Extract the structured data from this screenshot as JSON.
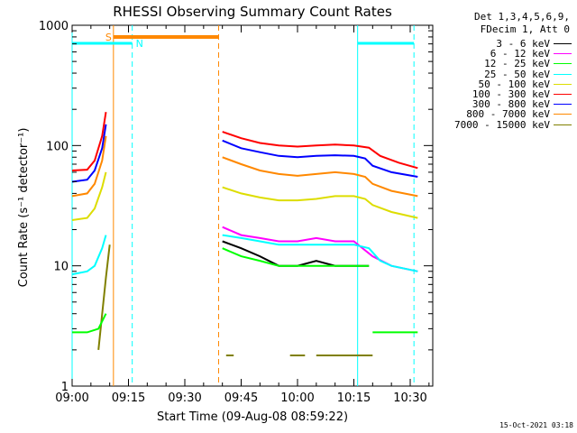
{
  "chart_data": {
    "type": "line",
    "title": "RHESSI Observing Summary Count Rates",
    "xlabel": "Start Time (09-Aug-08 08:59:22)",
    "ylabel": "Count Rate (s⁻¹ detector⁻¹)",
    "yscale": "log",
    "ylim": [
      1,
      1000
    ],
    "xlim_minutes": [
      0,
      96
    ],
    "x_ticks": [
      {
        "m": 0,
        "label": "09:00"
      },
      {
        "m": 15,
        "label": "09:15"
      },
      {
        "m": 30,
        "label": "09:30"
      },
      {
        "m": 45,
        "label": "09:45"
      },
      {
        "m": 60,
        "label": "10:00"
      },
      {
        "m": 75,
        "label": "10:15"
      },
      {
        "m": 90,
        "label": "10:30"
      }
    ],
    "y_ticks": [
      {
        "v": 1,
        "label": "1"
      },
      {
        "v": 10,
        "label": "10"
      },
      {
        "v": 100,
        "label": "100"
      },
      {
        "v": 1000,
        "label": "1000"
      }
    ],
    "legend_header": [
      "Det 1,3,4,5,6,9,",
      "FDecim 1, Att 0"
    ],
    "series": [
      {
        "name": "3 - 6 keV",
        "color": "#000000",
        "segments": [
          [
            [
              40,
              16
            ],
            [
              45,
              14
            ],
            [
              50,
              12
            ],
            [
              55,
              10
            ],
            [
              60,
              10
            ],
            [
              65,
              11
            ],
            [
              70,
              10
            ],
            [
              75,
              10
            ],
            [
              79,
              10
            ]
          ]
        ]
      },
      {
        "name": "6 - 12 keV",
        "color": "#ff00ff",
        "segments": [
          [
            [
              40,
              21
            ],
            [
              45,
              18
            ],
            [
              50,
              17
            ],
            [
              55,
              16
            ],
            [
              60,
              16
            ],
            [
              65,
              17
            ],
            [
              70,
              16
            ],
            [
              75,
              16
            ],
            [
              80,
              12
            ],
            [
              85,
              10
            ],
            [
              92,
              9
            ]
          ]
        ]
      },
      {
        "name": "12 - 25 keV",
        "color": "#00ff00",
        "segments": [
          [
            [
              0,
              2.8
            ],
            [
              4,
              2.8
            ],
            [
              7,
              3
            ],
            [
              9,
              4
            ]
          ],
          [
            [
              40,
              14
            ],
            [
              45,
              12
            ],
            [
              50,
              11
            ],
            [
              55,
              10
            ],
            [
              60,
              10
            ],
            [
              65,
              10
            ],
            [
              70,
              10
            ],
            [
              75,
              10
            ],
            [
              79,
              10
            ]
          ],
          [
            [
              80,
              2.8
            ],
            [
              92,
              2.8
            ]
          ]
        ]
      },
      {
        "name": "25 - 50 keV",
        "color": "#00ffff",
        "segments": [
          [
            [
              0,
              8.5
            ],
            [
              4,
              9
            ],
            [
              6,
              10
            ],
            [
              8,
              14
            ],
            [
              9,
              18
            ]
          ],
          [
            [
              40,
              18
            ],
            [
              45,
              17
            ],
            [
              50,
              16
            ],
            [
              55,
              15
            ],
            [
              60,
              15
            ],
            [
              65,
              15
            ],
            [
              70,
              15
            ],
            [
              75,
              15
            ],
            [
              79,
              14
            ],
            [
              82,
              11
            ],
            [
              85,
              10
            ],
            [
              92,
              9
            ]
          ]
        ]
      },
      {
        "name": "50 - 100 keV",
        "color": "#dddd00",
        "segments": [
          [
            [
              0,
              24
            ],
            [
              4,
              25
            ],
            [
              6,
              30
            ],
            [
              8,
              45
            ],
            [
              9,
              60
            ]
          ],
          [
            [
              40,
              45
            ],
            [
              45,
              40
            ],
            [
              50,
              37
            ],
            [
              55,
              35
            ],
            [
              60,
              35
            ],
            [
              65,
              36
            ],
            [
              70,
              38
            ],
            [
              75,
              38
            ],
            [
              78,
              36
            ],
            [
              80,
              32
            ],
            [
              85,
              28
            ],
            [
              92,
              25
            ]
          ]
        ]
      },
      {
        "name": "100 - 300 keV",
        "color": "#ff0000",
        "segments": [
          [
            [
              0,
              62
            ],
            [
              4,
              63
            ],
            [
              6,
              75
            ],
            [
              8,
              120
            ],
            [
              9,
              190
            ]
          ],
          [
            [
              40,
              130
            ],
            [
              45,
              115
            ],
            [
              50,
              105
            ],
            [
              55,
              100
            ],
            [
              60,
              98
            ],
            [
              65,
              100
            ],
            [
              70,
              102
            ],
            [
              75,
              100
            ],
            [
              79,
              96
            ],
            [
              82,
              82
            ],
            [
              87,
              72
            ],
            [
              92,
              65
            ]
          ]
        ]
      },
      {
        "name": "300 - 800 keV",
        "color": "#0000ff",
        "segments": [
          [
            [
              0,
              50
            ],
            [
              4,
              52
            ],
            [
              6,
              62
            ],
            [
              8,
              95
            ],
            [
              9,
              150
            ]
          ],
          [
            [
              40,
              110
            ],
            [
              45,
              95
            ],
            [
              50,
              88
            ],
            [
              55,
              82
            ],
            [
              60,
              80
            ],
            [
              65,
              82
            ],
            [
              70,
              83
            ],
            [
              75,
              82
            ],
            [
              78,
              78
            ],
            [
              80,
              68
            ],
            [
              85,
              60
            ],
            [
              92,
              55
            ]
          ]
        ]
      },
      {
        "name": "800 - 7000 keV",
        "color": "#ff8800",
        "segments": [
          [
            [
              0,
              38
            ],
            [
              4,
              40
            ],
            [
              6,
              48
            ],
            [
              8,
              75
            ],
            [
              9,
              120
            ]
          ],
          [
            [
              40,
              80
            ],
            [
              45,
              70
            ],
            [
              50,
              62
            ],
            [
              55,
              58
            ],
            [
              60,
              56
            ],
            [
              65,
              58
            ],
            [
              70,
              60
            ],
            [
              75,
              58
            ],
            [
              78,
              55
            ],
            [
              80,
              48
            ],
            [
              85,
              42
            ],
            [
              92,
              38
            ]
          ]
        ]
      },
      {
        "name": "7000 - 15000 keV",
        "color": "#808000",
        "segments": [
          [
            [
              7,
              2
            ],
            [
              9,
              8
            ],
            [
              10,
              15
            ]
          ],
          [
            [
              41,
              1.8
            ],
            [
              43,
              1.8
            ]
          ],
          [
            [
              58,
              1.8
            ],
            [
              62,
              1.8
            ]
          ],
          [
            [
              65,
              1.8
            ],
            [
              80,
              1.8
            ]
          ]
        ]
      }
    ],
    "markers": {
      "cyan_solid_minutes": [
        0,
        76
      ],
      "cyan_dashed_minutes": [
        16,
        91
      ],
      "orange_solid_minutes": [
        11
      ],
      "orange_dashed_minutes": [
        39
      ],
      "saa_bar": {
        "label": "S",
        "start": 11,
        "end": 39,
        "color": "#ff8800"
      },
      "night_bars": [
        {
          "label": "N",
          "start": 0,
          "end": 16,
          "color": "#00ffff"
        },
        {
          "start": 76,
          "end": 91,
          "color": "#00ffff"
        }
      ]
    }
  },
  "timestamp": "15-Oct-2021 03:18"
}
